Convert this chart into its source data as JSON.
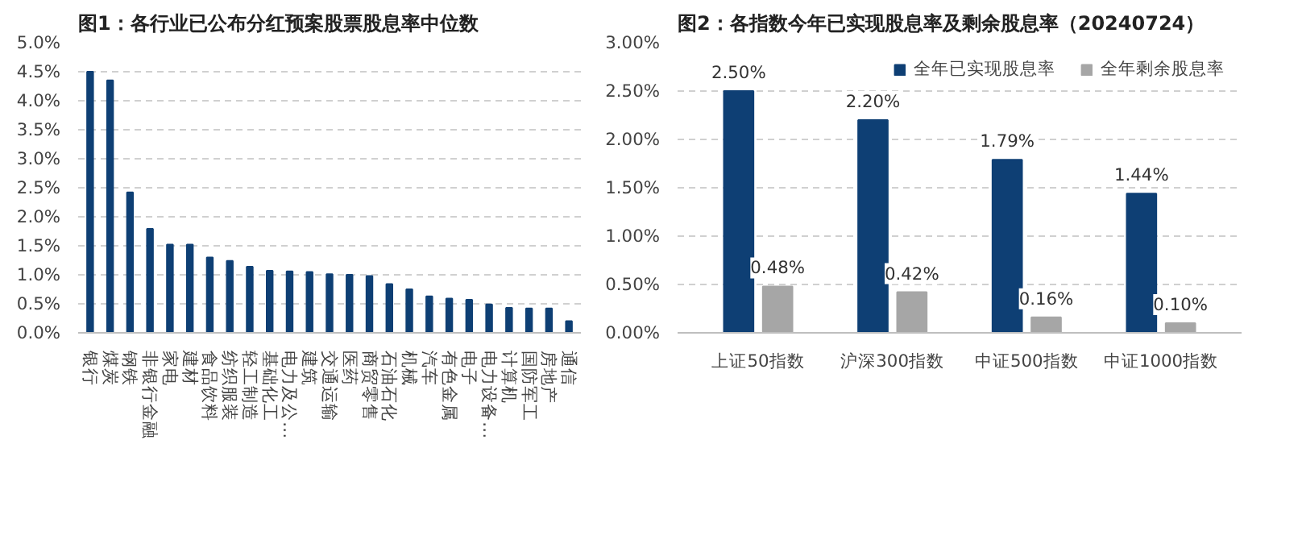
{
  "chart_data": [
    {
      "type": "bar",
      "title": "图1：各行业已公布分红预案股票股息率中位数",
      "categories": [
        "银行",
        "煤炭",
        "钢铁",
        "非银行金融",
        "家电",
        "建材",
        "食品饮料",
        "纺织服装",
        "轻工制造",
        "基础化工",
        "电力及公…",
        "建筑",
        "交通运输",
        "医药",
        "商贸零售",
        "石油石化",
        "机械",
        "汽车",
        "有色金属",
        "电子",
        "电力设备…",
        "计算机",
        "国防军工",
        "房地产",
        "通信"
      ],
      "series": [
        {
          "color": "#0e3f74",
          "values": [
            4.5,
            4.35,
            2.42,
            1.79,
            1.52,
            1.52,
            1.3,
            1.24,
            1.14,
            1.07,
            1.06,
            1.05,
            1.01,
            1.0,
            0.98,
            0.84,
            0.75,
            0.63,
            0.59,
            0.57,
            0.49,
            0.43,
            0.42,
            0.42,
            0.2
          ]
        }
      ],
      "ylim": [
        0,
        5
      ],
      "yticks": [
        {
          "value": 0,
          "label": "0.0%"
        },
        {
          "value": 0.5,
          "label": "0.5%"
        },
        {
          "value": 1,
          "label": "1.0%"
        },
        {
          "value": 1.5,
          "label": "1.5%"
        },
        {
          "value": 2,
          "label": "2.0%"
        },
        {
          "value": 2.5,
          "label": "2.5%"
        },
        {
          "value": 3,
          "label": "3.0%"
        },
        {
          "value": 3.5,
          "label": "3.5%"
        },
        {
          "value": 4,
          "label": "4.0%"
        },
        {
          "value": 4.5,
          "label": "4.5%"
        },
        {
          "value": 5,
          "label": "5.0%"
        }
      ],
      "grid": "y"
    },
    {
      "type": "bar",
      "title": "图2：各指数今年已实现股息率及剩余股息率（20240724）",
      "categories": [
        "上证50指数",
        "沪深300指数",
        "中证500指数",
        "中证1000指数"
      ],
      "series": [
        {
          "name": "全年已实现股息率",
          "color": "#0e3f74",
          "values": [
            2.5,
            2.2,
            1.79,
            1.44
          ],
          "value_labels": [
            "2.50%",
            "2.20%",
            "1.79%",
            "1.44%"
          ]
        },
        {
          "name": "全年剩余股息率",
          "color": "#a6a6a6",
          "values": [
            0.48,
            0.42,
            0.16,
            0.1
          ],
          "value_labels": [
            "0.48%",
            "0.42%",
            "0.16%",
            "0.10%"
          ]
        }
      ],
      "ylim": [
        0,
        3
      ],
      "yticks": [
        {
          "value": 0,
          "label": "0.00%"
        },
        {
          "value": 0.5,
          "label": "0.50%"
        },
        {
          "value": 1,
          "label": "1.00%"
        },
        {
          "value": 1.5,
          "label": "1.50%"
        },
        {
          "value": 2,
          "label": "2.00%"
        },
        {
          "value": 2.5,
          "label": "2.50%"
        },
        {
          "value": 3,
          "label": "3.00%"
        }
      ],
      "grid": "y",
      "legend": "top right"
    }
  ]
}
